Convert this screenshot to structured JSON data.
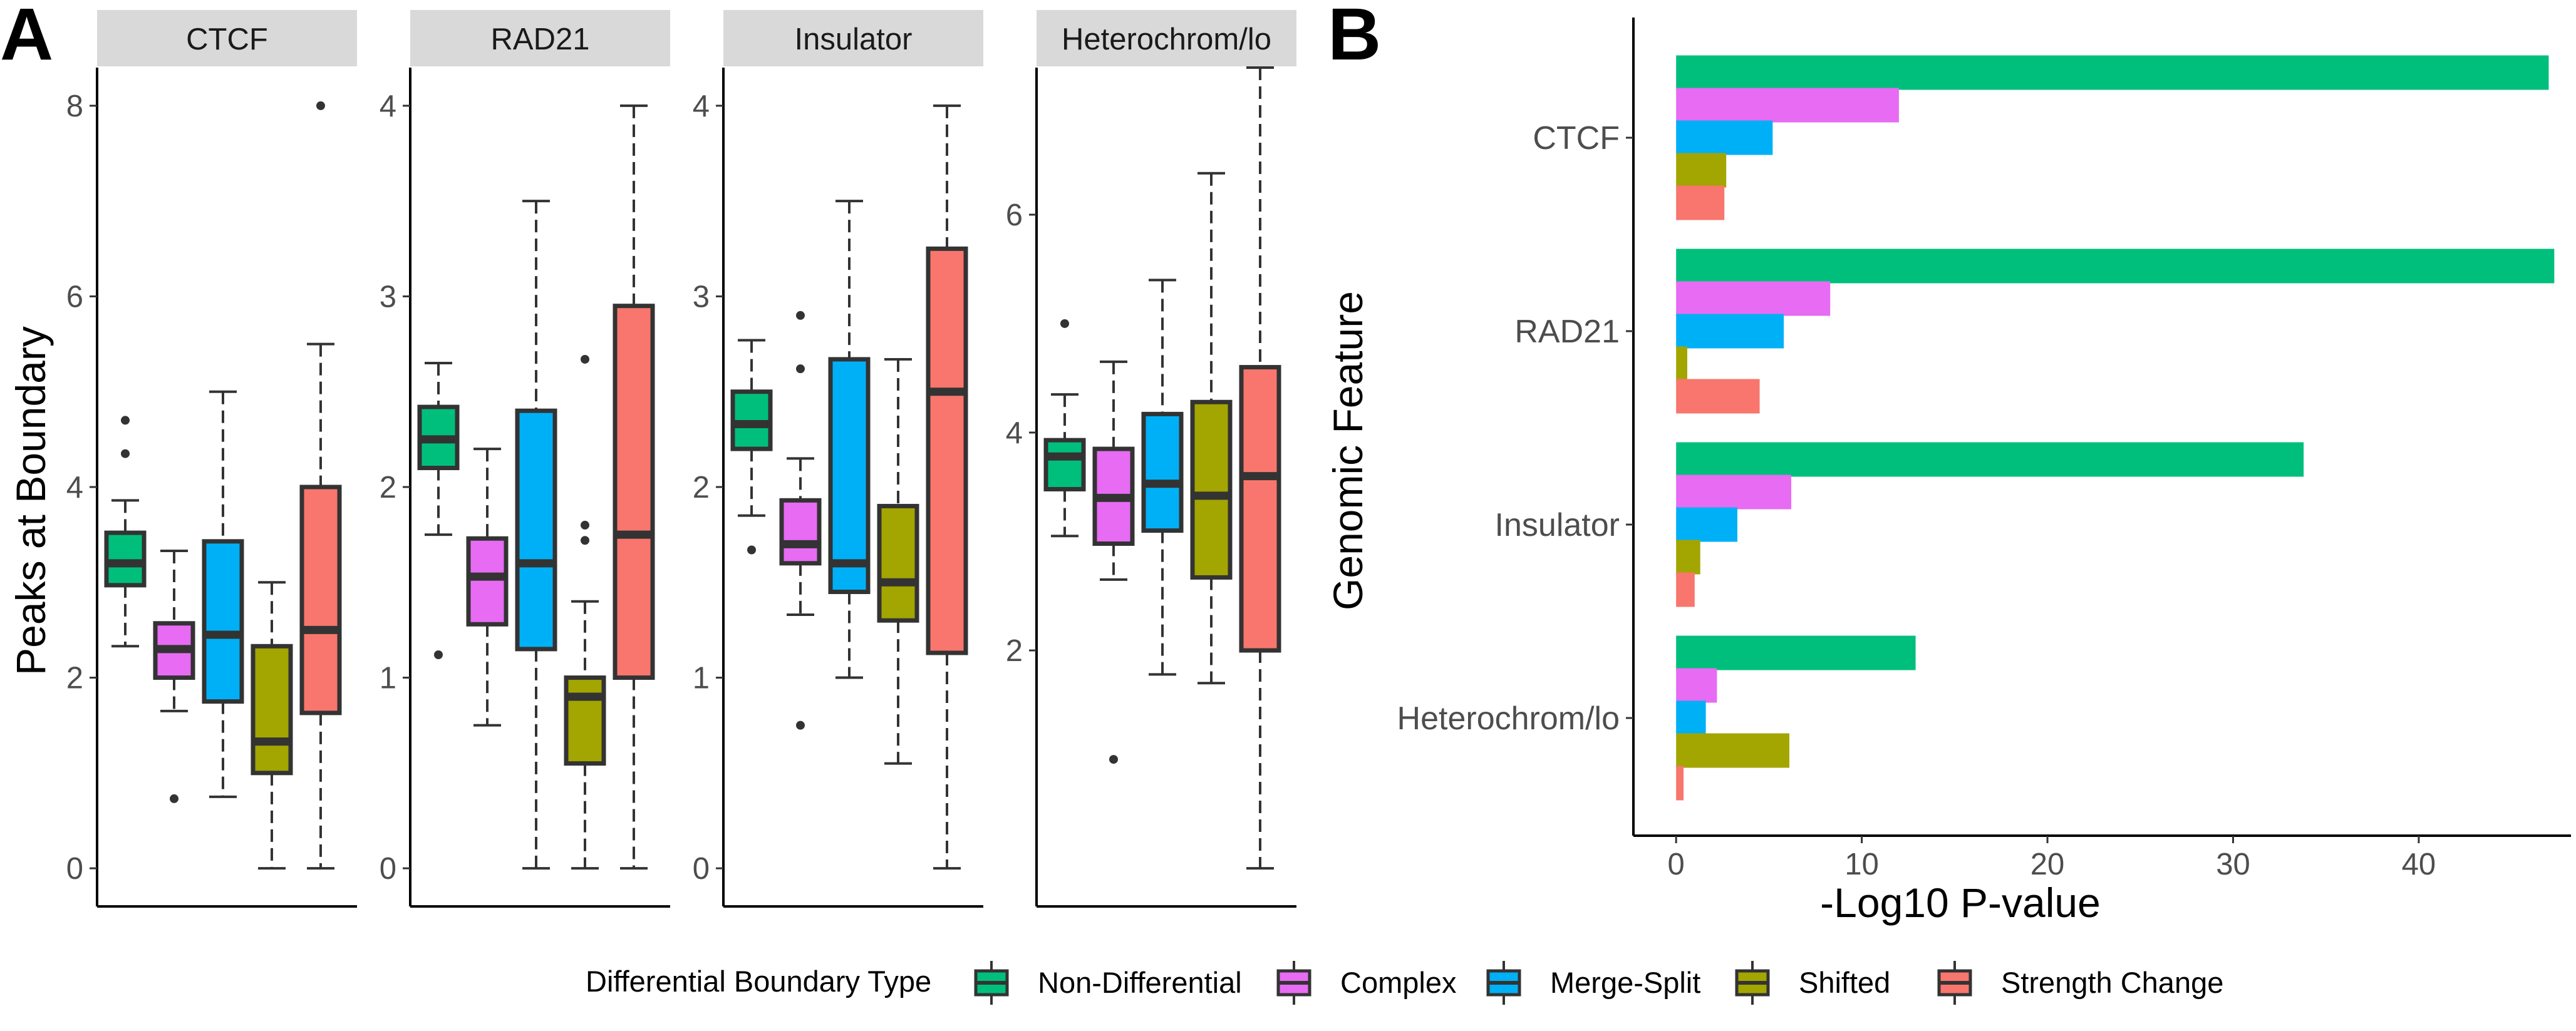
{
  "panel_labels": {
    "a": "A",
    "b": "B"
  },
  "colors": {
    "Non-Differential": "#00BF7D",
    "Complex": "#E76BF3",
    "Merge-Split": "#00B0F6",
    "Shifted": "#A3A500",
    "Strength Change": "#F8766D"
  },
  "legend": {
    "title": "Differential Boundary Type",
    "items": [
      "Non-Differential",
      "Complex",
      "Merge-Split",
      "Shifted",
      "Strength Change"
    ]
  },
  "chart_data": [
    {
      "type": "box",
      "panel": "A",
      "ylabel": "Peaks at Boundary",
      "xlabel": "",
      "facets": [
        {
          "title": "CTCF",
          "ylim": [
            -0.4,
            8.4
          ],
          "yticks": [
            0,
            2,
            4,
            6,
            8
          ],
          "boxes": [
            {
              "group": "Non-Differential",
              "lower_whisker": 2.33,
              "q1": 2.97,
              "median": 3.2,
              "q3": 3.52,
              "upper_whisker": 3.86,
              "outliers": [
                4.35,
                4.7
              ]
            },
            {
              "group": "Complex",
              "lower_whisker": 1.65,
              "q1": 2.0,
              "median": 2.3,
              "q3": 2.57,
              "upper_whisker": 3.33,
              "outliers": [
                0.73
              ]
            },
            {
              "group": "Merge-Split",
              "lower_whisker": 0.75,
              "q1": 1.75,
              "median": 2.45,
              "q3": 3.43,
              "upper_whisker": 5.0,
              "outliers": []
            },
            {
              "group": "Shifted",
              "lower_whisker": 0.0,
              "q1": 1.0,
              "median": 1.33,
              "q3": 2.33,
              "upper_whisker": 3.0,
              "outliers": []
            },
            {
              "group": "Strength Change",
              "lower_whisker": 0.0,
              "q1": 1.63,
              "median": 2.5,
              "q3": 4.0,
              "upper_whisker": 5.5,
              "outliers": [
                8.0
              ]
            }
          ]
        },
        {
          "title": "RAD21",
          "ylim": [
            -0.2,
            4.2
          ],
          "yticks": [
            0,
            1,
            2,
            3,
            4
          ],
          "boxes": [
            {
              "group": "Non-Differential",
              "lower_whisker": 1.75,
              "q1": 2.1,
              "median": 2.25,
              "q3": 2.42,
              "upper_whisker": 2.65,
              "outliers": [
                1.12
              ]
            },
            {
              "group": "Complex",
              "lower_whisker": 0.75,
              "q1": 1.28,
              "median": 1.53,
              "q3": 1.73,
              "upper_whisker": 2.2,
              "outliers": []
            },
            {
              "group": "Merge-Split",
              "lower_whisker": 0.0,
              "q1": 1.15,
              "median": 1.6,
              "q3": 2.4,
              "upper_whisker": 3.5,
              "outliers": []
            },
            {
              "group": "Shifted",
              "lower_whisker": 0.0,
              "q1": 0.55,
              "median": 0.9,
              "q3": 1.0,
              "upper_whisker": 1.4,
              "outliers": [
                1.72,
                1.8,
                2.67
              ]
            },
            {
              "group": "Strength Change",
              "lower_whisker": 0.0,
              "q1": 1.0,
              "median": 1.75,
              "q3": 2.95,
              "upper_whisker": 4.0,
              "outliers": []
            }
          ]
        },
        {
          "title": "Insulator",
          "ylim": [
            -0.2,
            4.2
          ],
          "yticks": [
            0,
            1,
            2,
            3,
            4
          ],
          "boxes": [
            {
              "group": "Non-Differential",
              "lower_whisker": 1.85,
              "q1": 2.2,
              "median": 2.33,
              "q3": 2.5,
              "upper_whisker": 2.77,
              "outliers": [
                1.67
              ]
            },
            {
              "group": "Complex",
              "lower_whisker": 1.33,
              "q1": 1.6,
              "median": 1.7,
              "q3": 1.93,
              "upper_whisker": 2.15,
              "outliers": [
                0.75,
                2.62,
                2.9
              ]
            },
            {
              "group": "Merge-Split",
              "lower_whisker": 1.0,
              "q1": 1.45,
              "median": 1.6,
              "q3": 2.67,
              "upper_whisker": 3.5,
              "outliers": []
            },
            {
              "group": "Shifted",
              "lower_whisker": 0.55,
              "q1": 1.3,
              "median": 1.5,
              "q3": 1.9,
              "upper_whisker": 2.67,
              "outliers": []
            },
            {
              "group": "Strength Change",
              "lower_whisker": 0.0,
              "q1": 1.13,
              "median": 2.5,
              "q3": 3.25,
              "upper_whisker": 4.0,
              "outliers": []
            }
          ]
        },
        {
          "title": "Heterochrom/lo",
          "ylim": [
            -0.35,
            7.35
          ],
          "yticks": [
            2,
            4,
            6
          ],
          "boxes": [
            {
              "group": "Non-Differential",
              "lower_whisker": 3.05,
              "q1": 3.48,
              "median": 3.78,
              "q3": 3.93,
              "upper_whisker": 4.35,
              "outliers": [
                5.0
              ]
            },
            {
              "group": "Complex",
              "lower_whisker": 2.65,
              "q1": 2.98,
              "median": 3.4,
              "q3": 3.85,
              "upper_whisker": 4.65,
              "outliers": [
                1.0
              ]
            },
            {
              "group": "Merge-Split",
              "lower_whisker": 1.78,
              "q1": 3.1,
              "median": 3.53,
              "q3": 4.17,
              "upper_whisker": 5.4,
              "outliers": []
            },
            {
              "group": "Shifted",
              "lower_whisker": 1.7,
              "q1": 2.67,
              "median": 3.42,
              "q3": 4.28,
              "upper_whisker": 6.38,
              "outliers": []
            },
            {
              "group": "Strength Change",
              "lower_whisker": 0.0,
              "q1": 2.0,
              "median": 3.6,
              "q3": 4.6,
              "upper_whisker": 7.35,
              "outliers": []
            }
          ]
        }
      ]
    },
    {
      "type": "bar",
      "orientation": "horizontal",
      "panel": "B",
      "xlabel": "-Log10 P-value",
      "ylabel": "Genomic Feature",
      "xlim": [
        -2.3,
        48.2
      ],
      "xticks": [
        0,
        10,
        20,
        30,
        40
      ],
      "categories": [
        "CTCF",
        "RAD21",
        "Insulator",
        "Heterochrom/lo"
      ],
      "series": [
        {
          "name": "Non-Differential",
          "values": [
            47.0,
            47.3,
            33.8,
            12.9
          ]
        },
        {
          "name": "Complex",
          "values": [
            12.0,
            8.3,
            6.2,
            2.2
          ]
        },
        {
          "name": "Merge-Split",
          "values": [
            5.2,
            5.8,
            3.3,
            1.6
          ]
        },
        {
          "name": "Shifted",
          "values": [
            2.7,
            0.6,
            1.3,
            6.1
          ]
        },
        {
          "name": "Strength Change",
          "values": [
            2.6,
            4.5,
            1.0,
            0.4
          ]
        }
      ]
    }
  ]
}
